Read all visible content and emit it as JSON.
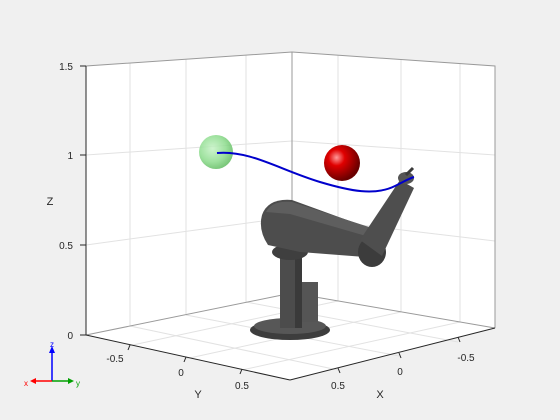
{
  "figure": {
    "background": "#f0f0f0",
    "pane_color": "#ffffff",
    "grid_color": "#e0e0e0",
    "axis_color": "#262626"
  },
  "axes": {
    "z_label": "Z",
    "y_label": "Y",
    "x_label": "X",
    "z_ticks": [
      "0",
      "0.5",
      "1",
      "1.5"
    ],
    "y_ticks": [
      "-0.5",
      "0",
      "0.5"
    ],
    "x_ticks": [
      "0.5",
      "0",
      "-0.5"
    ]
  },
  "objects": {
    "start_marker": {
      "color": "#88d888",
      "opacity": 0.8
    },
    "goal_marker": {
      "color": "#cc0000"
    },
    "trajectory": {
      "color": "#0000cc"
    },
    "robot": {
      "color": "#4a4a4a"
    }
  },
  "triad": {
    "z": {
      "label": "z",
      "color": "#0000ff"
    },
    "x": {
      "label": "x",
      "color": "#ff0000"
    },
    "y": {
      "label": "y",
      "color": "#00a000"
    }
  }
}
